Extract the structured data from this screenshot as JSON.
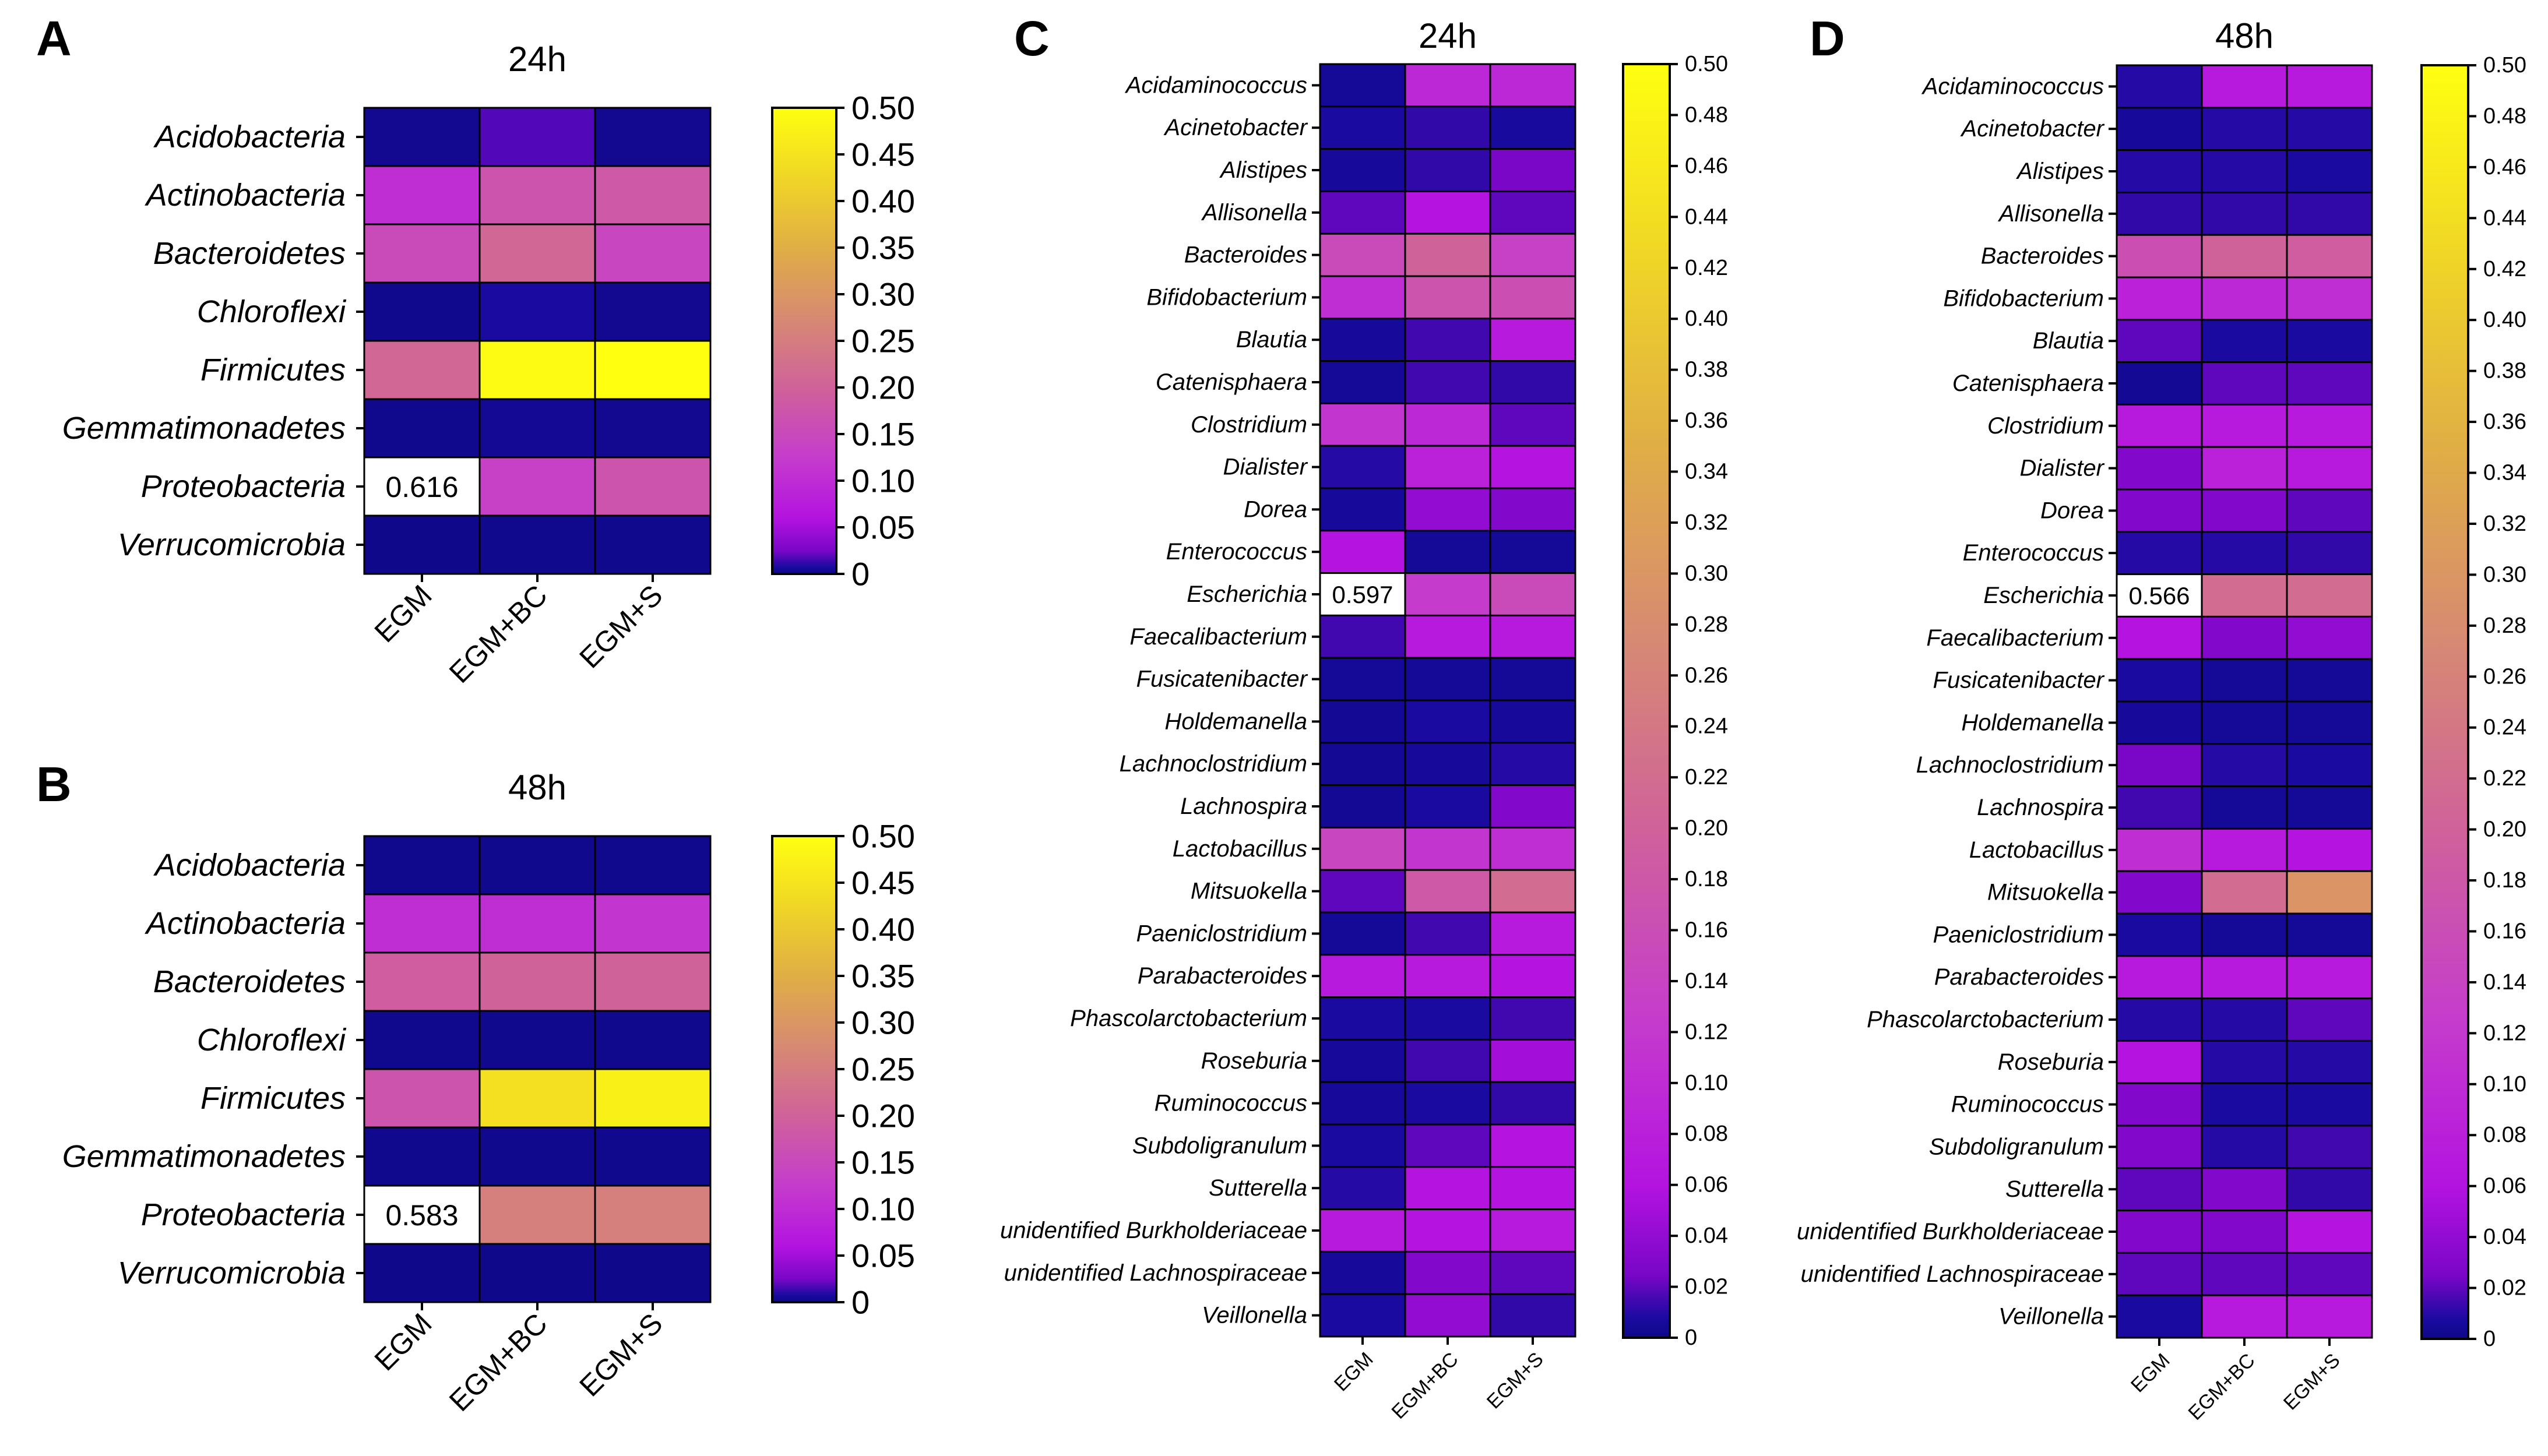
{
  "figure": {
    "colormap": "plasma-style",
    "low_color": "#000080",
    "high_color": "#FFFF00",
    "overflow_color": "#FFFFFF"
  },
  "chart_data": [
    {
      "panel": "A",
      "type": "heatmap",
      "title": "24h",
      "italic_rows": [
        true,
        true,
        true,
        true,
        true,
        true,
        true,
        true
      ],
      "rows": [
        "Acidobacteria",
        "Actinobacteria",
        "Bacteroidetes",
        "Chloroflexi",
        "Firmicutes",
        "Gemmatimonadetes",
        "Proteobacteria",
        "Verrucomicrobia"
      ],
      "columns": [
        "EGM",
        "EGM+BC",
        "EGM+S"
      ],
      "values": [
        [
          0.003,
          0.018,
          0.003
        ],
        [
          0.1,
          0.17,
          0.18
        ],
        [
          0.15,
          0.21,
          0.14
        ],
        [
          0.002,
          0.008,
          0.003
        ],
        [
          0.21,
          0.49,
          0.5
        ],
        [
          0.002,
          0.004,
          0.003
        ],
        [
          0.616,
          0.13,
          0.17
        ],
        [
          0.001,
          0.002,
          0.002
        ]
      ],
      "annotations": [
        {
          "row": 6,
          "col": 0,
          "text": "0.616"
        }
      ],
      "colorbar": {
        "min": 0,
        "max": 0.5,
        "ticks": [
          "0",
          "0.05",
          "0.10",
          "0.15",
          "0.20",
          "0.25",
          "0.30",
          "0.35",
          "0.40",
          "0.45",
          "0.50"
        ]
      }
    },
    {
      "panel": "B",
      "type": "heatmap",
      "title": "48h",
      "italic_rows": [
        true,
        true,
        true,
        true,
        true,
        true,
        true,
        false
      ],
      "rows": [
        "Acidobacteria",
        "Actinobacteria",
        "Bacteroidetes",
        "Chloroflexi",
        "Firmicutes",
        "Gemmatimonadetes",
        "Proteobacteria",
        "Verrucomicrobia"
      ],
      "columns": [
        "EGM",
        "EGM+BC",
        "EGM+S"
      ],
      "values": [
        [
          0.002,
          0.002,
          0.002
        ],
        [
          0.1,
          0.1,
          0.11
        ],
        [
          0.19,
          0.2,
          0.2
        ],
        [
          0.002,
          0.002,
          0.002
        ],
        [
          0.17,
          0.44,
          0.47
        ],
        [
          0.002,
          0.002,
          0.002
        ],
        [
          0.583,
          0.26,
          0.26
        ],
        [
          0.001,
          0.001,
          0.001
        ]
      ],
      "annotations": [
        {
          "row": 6,
          "col": 0,
          "text": "0.583"
        }
      ],
      "colorbar": {
        "min": 0,
        "max": 0.5,
        "ticks": [
          "0",
          "0.05",
          "0.10",
          "0.15",
          "0.20",
          "0.25",
          "0.30",
          "0.35",
          "0.40",
          "0.45",
          "0.50"
        ]
      }
    },
    {
      "panel": "C",
      "type": "heatmap",
      "title": "24h",
      "rows": [
        "Acidaminococcus",
        "Acinetobacter",
        "Alistipes",
        "Allisonella",
        "Bacteroides",
        "Bifidobacterium",
        "Blautia",
        "Catenisphaera",
        "Clostridium",
        "Dialister",
        "Dorea",
        "Enterococcus",
        "Escherichia",
        "Faecalibacterium",
        "Fusicatenibacter",
        "Holdemanella",
        "Lachnoclostridium",
        "Lachnospira",
        "Lactobacillus",
        "Mitsuokella",
        "Paeniclostridium",
        "Parabacteroides",
        "Phascolarctobacterium",
        "Roseburia",
        "Ruminococcus",
        "Subdoligranulum",
        "Sutterella",
        "unidentified Burkholderiaceae",
        "unidentified Lachnospiraceae",
        "Veillonella"
      ],
      "columns": [
        "EGM",
        "EGM+BC",
        "EGM+S"
      ],
      "values": [
        [
          0.005,
          0.09,
          0.09
        ],
        [
          0.008,
          0.012,
          0.007
        ],
        [
          0.006,
          0.012,
          0.025
        ],
        [
          0.02,
          0.06,
          0.02
        ],
        [
          0.15,
          0.2,
          0.13
        ],
        [
          0.1,
          0.17,
          0.16
        ],
        [
          0.006,
          0.015,
          0.07
        ],
        [
          0.005,
          0.015,
          0.012
        ],
        [
          0.11,
          0.09,
          0.02
        ],
        [
          0.01,
          0.08,
          0.06
        ],
        [
          0.006,
          0.04,
          0.03
        ],
        [
          0.06,
          0.005,
          0.005
        ],
        [
          0.597,
          0.12,
          0.15
        ],
        [
          0.015,
          0.07,
          0.07
        ],
        [
          0.005,
          0.005,
          0.005
        ],
        [
          0.004,
          0.008,
          0.006
        ],
        [
          0.004,
          0.006,
          0.01
        ],
        [
          0.004,
          0.008,
          0.03
        ],
        [
          0.14,
          0.11,
          0.1
        ],
        [
          0.02,
          0.18,
          0.22
        ],
        [
          0.005,
          0.015,
          0.07
        ],
        [
          0.07,
          0.07,
          0.06
        ],
        [
          0.008,
          0.008,
          0.015
        ],
        [
          0.006,
          0.015,
          0.05
        ],
        [
          0.006,
          0.008,
          0.012
        ],
        [
          0.008,
          0.02,
          0.06
        ],
        [
          0.01,
          0.06,
          0.06
        ],
        [
          0.07,
          0.06,
          0.07
        ],
        [
          0.006,
          0.03,
          0.02
        ],
        [
          0.008,
          0.04,
          0.012
        ]
      ],
      "annotations": [
        {
          "row": 12,
          "col": 0,
          "text": "0.597"
        }
      ],
      "colorbar": {
        "min": 0,
        "max": 0.5,
        "ticks": [
          "0",
          "0.02",
          "0.04",
          "0.06",
          "0.08",
          "0.10",
          "0.12",
          "0.14",
          "0.16",
          "0.18",
          "0.20",
          "0.22",
          "0.24",
          "0.26",
          "0.28",
          "0.30",
          "0.32",
          "0.34",
          "0.36",
          "0.38",
          "0.40",
          "0.42",
          "0.44",
          "0.46",
          "0.48",
          "0.50"
        ]
      }
    },
    {
      "panel": "D",
      "type": "heatmap",
      "title": "48h",
      "rows": [
        "Acidaminococcus",
        "Acinetobacter",
        "Alistipes",
        "Allisonella",
        "Bacteroides",
        "Bifidobacterium",
        "Blautia",
        "Catenisphaera",
        "Clostridium",
        "Dialister",
        "Dorea",
        "Enterococcus",
        "Escherichia",
        "Faecalibacterium",
        "Fusicatenibacter",
        "Holdemanella",
        "Lachnoclostridium",
        "Lachnospira",
        "Lactobacillus",
        "Mitsuokella",
        "Paeniclostridium",
        "Parabacteroides",
        "Phascolarctobacterium",
        "Roseburia",
        "Ruminococcus",
        "Subdoligranulum",
        "Sutterella",
        "unidentified Burkholderiaceae",
        "unidentified Lachnospiraceae",
        "Veillonella"
      ],
      "columns": [
        "EGM",
        "EGM+BC",
        "EGM+S"
      ],
      "values": [
        [
          0.01,
          0.07,
          0.07
        ],
        [
          0.006,
          0.01,
          0.01
        ],
        [
          0.01,
          0.01,
          0.008
        ],
        [
          0.012,
          0.012,
          0.012
        ],
        [
          0.16,
          0.2,
          0.19
        ],
        [
          0.08,
          0.09,
          0.1
        ],
        [
          0.02,
          0.008,
          0.008
        ],
        [
          0.004,
          0.02,
          0.02
        ],
        [
          0.07,
          0.07,
          0.07
        ],
        [
          0.03,
          0.08,
          0.07
        ],
        [
          0.03,
          0.03,
          0.02
        ],
        [
          0.01,
          0.01,
          0.012
        ],
        [
          0.566,
          0.22,
          0.22
        ],
        [
          0.06,
          0.03,
          0.04
        ],
        [
          0.008,
          0.005,
          0.005
        ],
        [
          0.006,
          0.005,
          0.005
        ],
        [
          0.025,
          0.01,
          0.008
        ],
        [
          0.015,
          0.005,
          0.005
        ],
        [
          0.1,
          0.07,
          0.06
        ],
        [
          0.03,
          0.22,
          0.3
        ],
        [
          0.008,
          0.005,
          0.005
        ],
        [
          0.07,
          0.07,
          0.07
        ],
        [
          0.01,
          0.01,
          0.02
        ],
        [
          0.06,
          0.01,
          0.01
        ],
        [
          0.03,
          0.008,
          0.008
        ],
        [
          0.03,
          0.01,
          0.015
        ],
        [
          0.02,
          0.03,
          0.012
        ],
        [
          0.03,
          0.03,
          0.06
        ],
        [
          0.02,
          0.02,
          0.02
        ],
        [
          0.008,
          0.07,
          0.07
        ]
      ],
      "annotations": [
        {
          "row": 12,
          "col": 0,
          "text": "0.566"
        }
      ],
      "colorbar": {
        "min": 0,
        "max": 0.5,
        "ticks": [
          "0",
          "0.02",
          "0.04",
          "0.06",
          "0.08",
          "0.10",
          "0.12",
          "0.14",
          "0.16",
          "0.18",
          "0.20",
          "0.22",
          "0.24",
          "0.26",
          "0.28",
          "0.30",
          "0.32",
          "0.34",
          "0.36",
          "0.38",
          "0.40",
          "0.42",
          "0.44",
          "0.46",
          "0.48",
          "0.50"
        ]
      }
    }
  ]
}
